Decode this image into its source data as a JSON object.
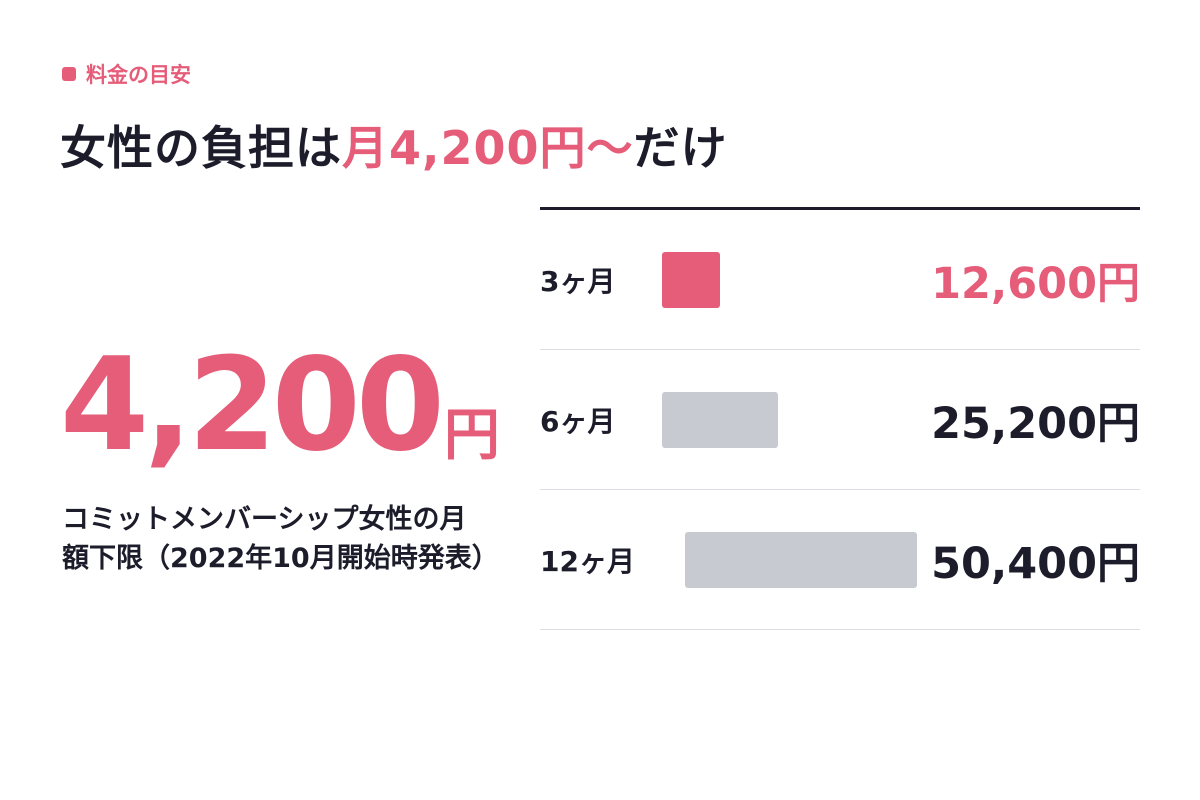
{
  "eyebrow": "料金の目安",
  "headline": {
    "pre": "女性の負担は",
    "highlight": "月4,200円〜",
    "post": "だけ"
  },
  "big_price": {
    "number": "4,200",
    "unit": "円"
  },
  "caption": "コミットメンバーシップ女性の月額下限（2022年10月開始時発表）",
  "colors": {
    "accent": "#e55d79",
    "text": "#1c1c2b",
    "bar_muted": "#c7cad1",
    "divider": "#dddde3"
  },
  "chart_data": {
    "type": "bar",
    "categories": [
      "3ヶ月",
      "6ヶ月",
      "12ヶ月"
    ],
    "values": [
      12600,
      25200,
      50400
    ],
    "value_labels": [
      "12,600円",
      "25,200円",
      "50,400円"
    ],
    "highlight_index": 0,
    "orientation": "horizontal"
  }
}
